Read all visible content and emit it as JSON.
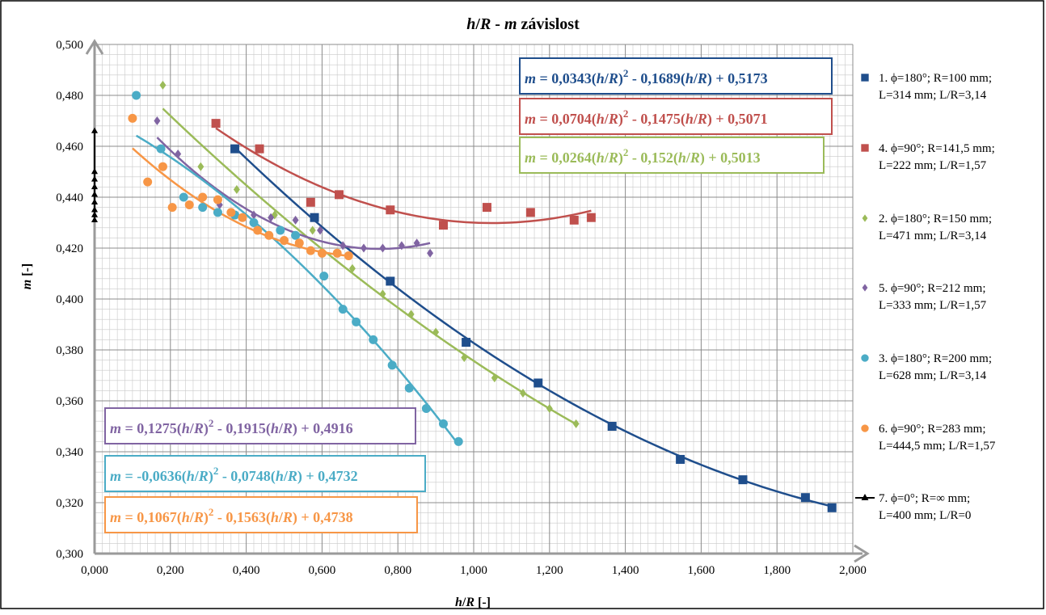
{
  "chart_data": {
    "type": "scatter",
    "title": "h/R - m závislost",
    "title_parts": [
      "h",
      "/",
      "R",
      " - ",
      "m",
      " závislost"
    ],
    "xlabel_parts": [
      "h",
      "/",
      "R",
      " [-]"
    ],
    "ylabel_parts": [
      "m",
      " [-]"
    ],
    "xlim": [
      0,
      2
    ],
    "ylim": [
      0.3,
      0.5
    ],
    "x_ticks": [
      "0,000",
      "0,200",
      "0,400",
      "0,600",
      "0,800",
      "1,000",
      "1,200",
      "1,400",
      "1,600",
      "1,800",
      "2,000"
    ],
    "y_ticks": [
      "0,300",
      "0,320",
      "0,340",
      "0,360",
      "0,380",
      "0,400",
      "0,420",
      "0,440",
      "0,460",
      "0,480",
      "0,500"
    ],
    "grid": true,
    "legend_position": "right",
    "series": [
      {
        "legend_lines": [
          "1. ϕ=180°; R=100 mm;",
          "L=314 mm;  L/R=3,14"
        ],
        "color": "#1f4e8c",
        "marker": "square",
        "points": [
          [
            0.37,
            0.459
          ],
          [
            0.58,
            0.432
          ],
          [
            0.78,
            0.407
          ],
          [
            0.98,
            0.383
          ],
          [
            1.17,
            0.367
          ],
          [
            1.365,
            0.35
          ],
          [
            1.545,
            0.337
          ],
          [
            1.71,
            0.329
          ],
          [
            1.875,
            0.322
          ],
          [
            1.945,
            0.318
          ]
        ],
        "trend": {
          "a": 0.0343,
          "b": -0.1689,
          "c": 0.5173,
          "x_from": 0.37,
          "x_to": 1.945
        },
        "equation": {
          "coef_a": "0,0343",
          "coef_b": "- 0,1689",
          "coef_c": "+ 0,5173"
        }
      },
      {
        "legend_lines": [
          "4. ϕ=90°; R=141,5 mm;",
          "L=222 mm;  L/R=1,57"
        ],
        "color": "#c0504d",
        "marker": "square",
        "points": [
          [
            0.32,
            0.469
          ],
          [
            0.435,
            0.459
          ],
          [
            0.57,
            0.438
          ],
          [
            0.645,
            0.441
          ],
          [
            0.78,
            0.435
          ],
          [
            0.92,
            0.429
          ],
          [
            1.035,
            0.436
          ],
          [
            1.15,
            0.434
          ],
          [
            1.265,
            0.431
          ],
          [
            1.31,
            0.432
          ]
        ],
        "trend": {
          "a": 0.0704,
          "b": -0.1475,
          "c": 0.5071,
          "x_from": 0.32,
          "x_to": 1.31
        },
        "equation": {
          "coef_a": "0,0704",
          "coef_b": "- 0,1475",
          "coef_c": "+ 0,5071"
        }
      },
      {
        "legend_lines": [
          "2. ϕ=180°; R=150 mm;",
          "L=471 mm;  L/R=3,14"
        ],
        "color": "#9bbb59",
        "marker": "diamond",
        "points": [
          [
            0.18,
            0.484
          ],
          [
            0.28,
            0.452
          ],
          [
            0.375,
            0.443
          ],
          [
            0.475,
            0.433
          ],
          [
            0.575,
            0.427
          ],
          [
            0.68,
            0.412
          ],
          [
            0.76,
            0.402
          ],
          [
            0.835,
            0.394
          ],
          [
            0.9,
            0.387
          ],
          [
            0.975,
            0.377
          ],
          [
            1.055,
            0.369
          ],
          [
            1.13,
            0.363
          ],
          [
            1.2,
            0.357
          ],
          [
            1.27,
            0.351
          ]
        ],
        "trend": {
          "a": 0.0264,
          "b": -0.152,
          "c": 0.5013,
          "x_from": 0.18,
          "x_to": 1.27
        },
        "equation": {
          "coef_a": "0,0264",
          "coef_b": "- 0,152",
          "coef_c": "+ 0,5013"
        }
      },
      {
        "legend_lines": [
          "5. ϕ=90°; R=212 mm;",
          "L=333 mm;  L/R=1,57"
        ],
        "color": "#8064a2",
        "marker": "diamond",
        "points": [
          [
            0.165,
            0.47
          ],
          [
            0.22,
            0.457
          ],
          [
            0.33,
            0.437
          ],
          [
            0.42,
            0.433
          ],
          [
            0.465,
            0.432
          ],
          [
            0.53,
            0.431
          ],
          [
            0.595,
            0.427
          ],
          [
            0.655,
            0.421
          ],
          [
            0.71,
            0.42
          ],
          [
            0.76,
            0.42
          ],
          [
            0.81,
            0.421
          ],
          [
            0.85,
            0.422
          ],
          [
            0.885,
            0.418
          ]
        ],
        "trend": {
          "a": 0.1275,
          "b": -0.1915,
          "c": 0.4916,
          "x_from": 0.165,
          "x_to": 0.885
        },
        "equation": {
          "coef_a": "0,1275",
          "coef_b": "- 0,1915",
          "coef_c": "+ 0,4916"
        }
      },
      {
        "legend_lines": [
          "3. ϕ=180°; R=200 mm;",
          "L=628 mm;  L/R=3,14"
        ],
        "color": "#4bacc6",
        "marker": "circle",
        "points": [
          [
            0.11,
            0.48
          ],
          [
            0.175,
            0.459
          ],
          [
            0.235,
            0.44
          ],
          [
            0.285,
            0.436
          ],
          [
            0.325,
            0.434
          ],
          [
            0.37,
            0.433
          ],
          [
            0.42,
            0.43
          ],
          [
            0.49,
            0.427
          ],
          [
            0.53,
            0.425
          ],
          [
            0.605,
            0.409
          ],
          [
            0.655,
            0.396
          ],
          [
            0.69,
            0.391
          ],
          [
            0.735,
            0.384
          ],
          [
            0.785,
            0.374
          ],
          [
            0.83,
            0.365
          ],
          [
            0.875,
            0.357
          ],
          [
            0.92,
            0.351
          ],
          [
            0.96,
            0.344
          ]
        ],
        "trend": {
          "a": -0.0636,
          "b": -0.0748,
          "c": 0.4732,
          "x_from": 0.11,
          "x_to": 0.96
        },
        "equation": {
          "coef_a": "-0,0636",
          "coef_b": "- 0,0748",
          "coef_c": "+ 0,4732"
        }
      },
      {
        "legend_lines": [
          "6. ϕ=90°; R=283 mm;",
          "L=444,5 mm;  L/R=1,57"
        ],
        "color": "#f79646",
        "marker": "circle",
        "points": [
          [
            0.1,
            0.471
          ],
          [
            0.14,
            0.446
          ],
          [
            0.18,
            0.452
          ],
          [
            0.205,
            0.436
          ],
          [
            0.25,
            0.437
          ],
          [
            0.285,
            0.44
          ],
          [
            0.325,
            0.439
          ],
          [
            0.36,
            0.434
          ],
          [
            0.39,
            0.432
          ],
          [
            0.43,
            0.427
          ],
          [
            0.46,
            0.425
          ],
          [
            0.5,
            0.423
          ],
          [
            0.54,
            0.422
          ],
          [
            0.57,
            0.419
          ],
          [
            0.6,
            0.418
          ],
          [
            0.64,
            0.418
          ],
          [
            0.67,
            0.417
          ]
        ],
        "trend": {
          "a": 0.1067,
          "b": -0.1563,
          "c": 0.4738,
          "x_from": 0.1,
          "x_to": 0.67
        },
        "equation": {
          "coef_a": "0,1067",
          "coef_b": "- 0,1563",
          "coef_c": "+ 0,4738"
        }
      },
      {
        "legend_lines": [
          "7. ϕ=0°; R=∞ mm;",
          "L=400 mm;  L/R=0"
        ],
        "color": "#000000",
        "marker": "triangle",
        "points": [
          [
            0,
            0.466
          ],
          [
            0,
            0.45
          ],
          [
            0,
            0.447
          ],
          [
            0,
            0.444
          ],
          [
            0,
            0.441
          ],
          [
            0,
            0.438
          ],
          [
            0,
            0.435
          ],
          [
            0,
            0.433
          ],
          [
            0,
            0.431
          ]
        ]
      }
    ]
  }
}
